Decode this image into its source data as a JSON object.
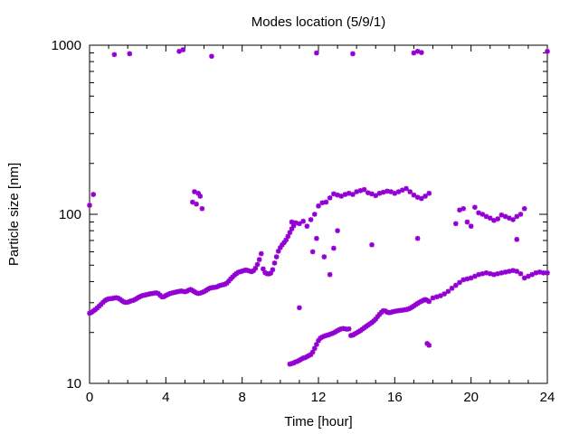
{
  "chart_data": {
    "type": "scatter",
    "title": "Modes location (5/9/1)",
    "xlabel": "Time [hour]",
    "ylabel": "Particle size [nm]",
    "xlim": [
      0,
      24
    ],
    "ylim": [
      10,
      1000
    ],
    "yscale": "log",
    "grid": false,
    "legend": "none",
    "marker_color": "#9400d3",
    "marker": "star",
    "x_ticks": [
      0,
      4,
      8,
      12,
      16,
      20,
      24
    ],
    "x_tick_labels": [
      "0",
      "4",
      "8",
      "12",
      "16",
      "20",
      "24"
    ],
    "y_ticks": [
      10,
      100,
      1000
    ],
    "y_tick_labels": [
      "10",
      "100",
      "1000"
    ],
    "series": [
      {
        "points": [
          [
            0.0,
            113
          ],
          [
            0.2,
            131
          ],
          [
            1.3,
            880
          ],
          [
            2.1,
            890
          ],
          [
            4.7,
            920
          ],
          [
            4.9,
            940
          ],
          [
            6.4,
            860
          ],
          [
            11.9,
            900
          ],
          [
            13.8,
            890
          ],
          [
            17.0,
            900
          ],
          [
            17.2,
            920
          ],
          [
            17.4,
            905
          ],
          [
            24.0,
            920
          ],
          [
            0.0,
            26
          ],
          [
            0.1,
            26.3
          ],
          [
            0.2,
            26.8
          ],
          [
            0.3,
            27.3
          ],
          [
            0.4,
            27.9
          ],
          [
            0.5,
            28.6
          ],
          [
            0.6,
            29.3
          ],
          [
            0.7,
            30.1
          ],
          [
            0.8,
            30.8
          ],
          [
            0.9,
            31.3
          ],
          [
            1.0,
            31.6
          ],
          [
            1.1,
            31.7
          ],
          [
            1.2,
            31.8
          ],
          [
            1.3,
            32.0
          ],
          [
            1.4,
            32.1
          ],
          [
            1.5,
            31.9
          ],
          [
            1.6,
            31.4
          ],
          [
            1.7,
            30.8
          ],
          [
            1.8,
            30.3
          ],
          [
            1.9,
            30.1
          ],
          [
            2.0,
            30.2
          ],
          [
            2.1,
            30.5
          ],
          [
            2.2,
            30.8
          ],
          [
            2.3,
            31.0
          ],
          [
            2.4,
            31.4
          ],
          [
            2.5,
            31.9
          ],
          [
            2.6,
            32.4
          ],
          [
            2.7,
            32.8
          ],
          [
            2.8,
            33.1
          ],
          [
            2.9,
            33.3
          ],
          [
            3.0,
            33.5
          ],
          [
            3.1,
            33.7
          ],
          [
            3.2,
            33.9
          ],
          [
            3.3,
            34.0
          ],
          [
            3.4,
            34.2
          ],
          [
            3.5,
            34.3
          ],
          [
            3.6,
            34.0
          ],
          [
            3.7,
            33.2
          ],
          [
            3.8,
            32.5
          ],
          [
            3.9,
            32.6
          ],
          [
            4.0,
            33.1
          ],
          [
            4.1,
            33.5
          ],
          [
            4.2,
            33.9
          ],
          [
            4.3,
            34.2
          ],
          [
            4.4,
            34.4
          ],
          [
            4.5,
            34.6
          ],
          [
            4.6,
            34.8
          ],
          [
            4.7,
            35.0
          ],
          [
            4.8,
            35.2
          ],
          [
            4.9,
            35.0
          ],
          [
            5.0,
            34.8
          ],
          [
            5.1,
            35.1
          ],
          [
            5.2,
            35.6
          ],
          [
            5.3,
            35.9
          ],
          [
            5.4,
            35.4
          ],
          [
            5.5,
            34.8
          ],
          [
            5.6,
            34.3
          ],
          [
            5.7,
            34.0
          ],
          [
            5.8,
            34.2
          ],
          [
            5.9,
            34.5
          ],
          [
            6.0,
            34.9
          ],
          [
            6.1,
            35.4
          ],
          [
            6.2,
            36.0
          ],
          [
            6.3,
            36.5
          ],
          [
            6.4,
            36.8
          ],
          [
            6.5,
            36.9
          ],
          [
            6.6,
            37.0
          ],
          [
            6.7,
            37.3
          ],
          [
            6.8,
            37.8
          ],
          [
            6.9,
            38.1
          ],
          [
            7.0,
            38.3
          ],
          [
            7.1,
            38.6
          ],
          [
            7.2,
            39.2
          ],
          [
            7.3,
            40.3
          ],
          [
            7.4,
            41.5
          ],
          [
            7.5,
            42.6
          ],
          [
            7.6,
            43.7
          ],
          [
            7.7,
            44.6
          ],
          [
            7.8,
            45.4
          ],
          [
            7.9,
            45.8
          ],
          [
            8.0,
            46.1
          ],
          [
            8.1,
            46.5
          ],
          [
            8.2,
            46.8
          ],
          [
            8.3,
            46.5
          ],
          [
            8.4,
            46.1
          ],
          [
            8.5,
            45.8
          ],
          [
            8.6,
            46.4
          ],
          [
            8.7,
            48.0
          ],
          [
            8.8,
            50.5
          ],
          [
            8.9,
            54.0
          ],
          [
            9.0,
            58.5
          ],
          [
            9.1,
            47.5
          ],
          [
            9.2,
            45.2
          ],
          [
            9.3,
            44.5
          ],
          [
            9.4,
            44.4
          ],
          [
            9.5,
            44.9
          ],
          [
            9.6,
            47.0
          ],
          [
            9.7,
            51.5
          ],
          [
            9.8,
            56.0
          ],
          [
            9.9,
            60.5
          ],
          [
            10.0,
            63.5
          ],
          [
            10.1,
            66.0
          ],
          [
            10.2,
            68.0
          ],
          [
            10.3,
            70.5
          ],
          [
            10.4,
            74.0
          ],
          [
            10.5,
            78.0
          ],
          [
            10.6,
            82.0
          ],
          [
            10.7,
            85.5
          ],
          [
            5.4,
            118
          ],
          [
            5.5,
            136
          ],
          [
            5.6,
            115
          ],
          [
            5.7,
            133
          ],
          [
            5.8,
            128
          ],
          [
            5.9,
            108
          ],
          [
            10.6,
            90
          ],
          [
            10.8,
            89
          ],
          [
            11.0,
            88
          ],
          [
            11.2,
            91
          ],
          [
            11.4,
            85
          ],
          [
            11.6,
            93
          ],
          [
            11.8,
            100
          ],
          [
            12.0,
            112
          ],
          [
            12.2,
            117
          ],
          [
            12.4,
            118
          ],
          [
            12.6,
            125
          ],
          [
            12.8,
            132
          ],
          [
            13.0,
            130
          ],
          [
            13.2,
            128
          ],
          [
            13.4,
            131
          ],
          [
            13.6,
            133
          ],
          [
            13.8,
            131
          ],
          [
            14.0,
            136
          ],
          [
            14.2,
            138
          ],
          [
            14.4,
            140
          ],
          [
            14.6,
            134
          ],
          [
            14.8,
            132
          ],
          [
            15.0,
            129
          ],
          [
            15.2,
            133
          ],
          [
            15.4,
            135
          ],
          [
            15.6,
            137
          ],
          [
            15.8,
            136
          ],
          [
            16.0,
            133
          ],
          [
            16.2,
            136
          ],
          [
            16.4,
            139
          ],
          [
            16.6,
            142
          ],
          [
            16.8,
            136
          ],
          [
            17.0,
            130
          ],
          [
            17.2,
            126
          ],
          [
            17.4,
            124
          ],
          [
            17.6,
            128
          ],
          [
            17.8,
            133
          ],
          [
            11.7,
            60
          ],
          [
            11.9,
            72
          ],
          [
            12.3,
            56
          ],
          [
            12.6,
            44
          ],
          [
            12.8,
            63
          ],
          [
            13.0,
            80
          ],
          [
            11.0,
            28
          ],
          [
            14.8,
            66
          ],
          [
            17.2,
            72
          ],
          [
            19.2,
            88
          ],
          [
            19.4,
            106
          ],
          [
            19.6,
            108
          ],
          [
            19.8,
            90
          ],
          [
            20.0,
            85
          ],
          [
            20.2,
            110
          ],
          [
            20.4,
            102
          ],
          [
            20.6,
            100
          ],
          [
            20.8,
            97
          ],
          [
            21.0,
            95
          ],
          [
            21.2,
            92
          ],
          [
            21.4,
            94
          ],
          [
            21.6,
            99
          ],
          [
            21.8,
            97
          ],
          [
            22.0,
            95
          ],
          [
            22.2,
            93
          ],
          [
            22.4,
            97
          ],
          [
            22.6,
            100
          ],
          [
            22.8,
            108
          ],
          [
            22.4,
            71
          ],
          [
            10.5,
            13.0
          ],
          [
            10.6,
            13.1
          ],
          [
            10.7,
            13.2
          ],
          [
            10.8,
            13.4
          ],
          [
            10.9,
            13.5
          ],
          [
            11.0,
            13.7
          ],
          [
            11.1,
            13.9
          ],
          [
            11.2,
            14.1
          ],
          [
            11.3,
            14.2
          ],
          [
            11.4,
            14.4
          ],
          [
            11.5,
            14.6
          ],
          [
            11.6,
            14.8
          ],
          [
            11.7,
            15.3
          ],
          [
            11.8,
            16.1
          ],
          [
            11.9,
            17.0
          ],
          [
            12.0,
            17.9
          ],
          [
            12.1,
            18.5
          ],
          [
            12.2,
            18.8
          ],
          [
            12.3,
            19.0
          ],
          [
            12.4,
            19.2
          ],
          [
            12.5,
            19.3
          ],
          [
            12.6,
            19.5
          ],
          [
            12.7,
            19.7
          ],
          [
            12.8,
            19.9
          ],
          [
            12.9,
            20.2
          ],
          [
            13.0,
            20.5
          ],
          [
            13.1,
            20.8
          ],
          [
            13.2,
            21.0
          ],
          [
            13.3,
            21.1
          ],
          [
            13.4,
            21.0
          ],
          [
            13.5,
            20.9
          ],
          [
            13.6,
            21.0
          ],
          [
            13.7,
            19.2
          ],
          [
            13.8,
            19.3
          ],
          [
            13.9,
            19.6
          ],
          [
            14.0,
            19.9
          ],
          [
            14.1,
            20.2
          ],
          [
            14.2,
            20.5
          ],
          [
            14.3,
            20.9
          ],
          [
            14.4,
            21.3
          ],
          [
            14.5,
            21.7
          ],
          [
            14.6,
            22.1
          ],
          [
            14.7,
            22.5
          ],
          [
            14.8,
            22.9
          ],
          [
            14.9,
            23.4
          ],
          [
            15.0,
            24.0
          ],
          [
            15.1,
            24.8
          ],
          [
            15.2,
            25.6
          ],
          [
            15.3,
            26.3
          ],
          [
            15.4,
            26.9
          ],
          [
            15.5,
            26.8
          ],
          [
            15.6,
            26.4
          ],
          [
            15.7,
            26.2
          ],
          [
            15.8,
            26.3
          ],
          [
            15.9,
            26.5
          ],
          [
            16.0,
            26.7
          ],
          [
            16.1,
            26.8
          ],
          [
            16.2,
            26.9
          ],
          [
            16.3,
            27.0
          ],
          [
            16.4,
            27.1
          ],
          [
            16.5,
            27.2
          ],
          [
            16.6,
            27.3
          ],
          [
            16.7,
            27.5
          ],
          [
            16.8,
            27.8
          ],
          [
            16.9,
            28.2
          ],
          [
            17.0,
            28.7
          ],
          [
            17.1,
            29.2
          ],
          [
            17.2,
            29.7
          ],
          [
            17.3,
            30.2
          ],
          [
            17.4,
            30.6
          ],
          [
            17.5,
            31.0
          ],
          [
            17.6,
            31.3
          ],
          [
            17.7,
            31.0
          ],
          [
            17.8,
            30.5
          ],
          [
            17.7,
            17.2
          ],
          [
            17.8,
            16.8
          ],
          [
            18.0,
            32.0
          ],
          [
            18.2,
            32.5
          ],
          [
            18.4,
            33.0
          ],
          [
            18.6,
            33.8
          ],
          [
            18.8,
            35.0
          ],
          [
            19.0,
            36.5
          ],
          [
            19.2,
            38.0
          ],
          [
            19.4,
            39.5
          ],
          [
            19.6,
            41.0
          ],
          [
            19.8,
            41.5
          ],
          [
            20.0,
            42.0
          ],
          [
            20.2,
            43.0
          ],
          [
            20.4,
            44.0
          ],
          [
            20.6,
            44.5
          ],
          [
            20.8,
            45.0
          ],
          [
            21.0,
            44.5
          ],
          [
            21.2,
            44.0
          ],
          [
            21.4,
            44.5
          ],
          [
            21.6,
            45.0
          ],
          [
            21.8,
            45.5
          ],
          [
            22.0,
            46.0
          ],
          [
            22.2,
            46.5
          ],
          [
            22.4,
            46.0
          ],
          [
            22.6,
            44.5
          ],
          [
            22.8,
            42.0
          ],
          [
            23.0,
            43.0
          ],
          [
            23.2,
            44.0
          ],
          [
            23.4,
            45.0
          ],
          [
            23.6,
            45.5
          ],
          [
            23.8,
            45.0
          ],
          [
            24.0,
            45.0
          ]
        ]
      }
    ]
  }
}
